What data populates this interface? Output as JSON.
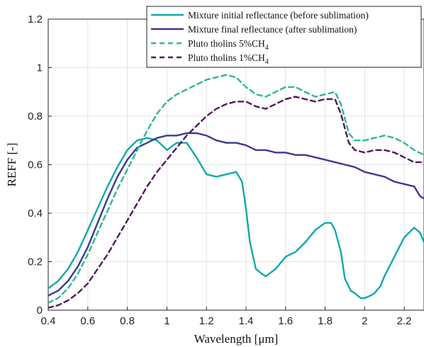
{
  "chart_data": {
    "type": "line",
    "xlabel": "Wavelength [μm]",
    "ylabel": "REFF [-]",
    "xlim": [
      0.4,
      2.3
    ],
    "ylim": [
      0,
      1.2
    ],
    "xticks": [
      0.4,
      0.6,
      0.8,
      1,
      1.2,
      1.4,
      1.6,
      1.8,
      2,
      2.2
    ],
    "xtick_labels": [
      "0.4",
      "0.6",
      "0.8",
      "1",
      "1.2",
      "1.4",
      "1.6",
      "1.8",
      "2",
      "2.2"
    ],
    "yticks": [
      0,
      0.2,
      0.4,
      0.6,
      0.8,
      1,
      1.2
    ],
    "ytick_labels": [
      "0",
      "0.2",
      "0.4",
      "0.6",
      "0.8",
      "1",
      "1.2"
    ],
    "grid": true,
    "legend_position": "top-right",
    "series": [
      {
        "name": "Mixture initial reflectance (before sublimation)",
        "color": "#13a8a8",
        "style": "solid",
        "x": [
          0.4,
          0.45,
          0.5,
          0.55,
          0.6,
          0.65,
          0.7,
          0.75,
          0.8,
          0.85,
          0.9,
          0.95,
          1.0,
          1.05,
          1.1,
          1.15,
          1.2,
          1.25,
          1.3,
          1.35,
          1.38,
          1.4,
          1.42,
          1.45,
          1.48,
          1.5,
          1.55,
          1.6,
          1.65,
          1.7,
          1.75,
          1.8,
          1.83,
          1.85,
          1.88,
          1.9,
          1.93,
          1.95,
          1.98,
          2.0,
          2.03,
          2.05,
          2.08,
          2.1,
          2.15,
          2.2,
          2.25,
          2.28,
          2.3
        ],
        "y": [
          0.09,
          0.12,
          0.17,
          0.24,
          0.33,
          0.42,
          0.51,
          0.59,
          0.66,
          0.7,
          0.71,
          0.7,
          0.66,
          0.69,
          0.69,
          0.63,
          0.56,
          0.55,
          0.56,
          0.57,
          0.53,
          0.42,
          0.28,
          0.17,
          0.15,
          0.14,
          0.17,
          0.22,
          0.24,
          0.28,
          0.33,
          0.36,
          0.36,
          0.33,
          0.24,
          0.13,
          0.08,
          0.07,
          0.05,
          0.05,
          0.06,
          0.07,
          0.1,
          0.14,
          0.22,
          0.3,
          0.34,
          0.32,
          0.28
        ]
      },
      {
        "name": "Mixture final reflectance (after sublimation)",
        "color": "#3a3a94",
        "style": "solid",
        "x": [
          0.4,
          0.45,
          0.5,
          0.55,
          0.6,
          0.65,
          0.7,
          0.75,
          0.8,
          0.85,
          0.9,
          0.95,
          1.0,
          1.05,
          1.1,
          1.15,
          1.2,
          1.25,
          1.3,
          1.35,
          1.4,
          1.45,
          1.5,
          1.55,
          1.6,
          1.65,
          1.7,
          1.75,
          1.8,
          1.85,
          1.9,
          1.95,
          2.0,
          2.05,
          2.1,
          2.15,
          2.2,
          2.25,
          2.28,
          2.3
        ],
        "y": [
          0.06,
          0.08,
          0.12,
          0.18,
          0.26,
          0.36,
          0.46,
          0.55,
          0.62,
          0.67,
          0.69,
          0.71,
          0.72,
          0.72,
          0.73,
          0.73,
          0.72,
          0.7,
          0.69,
          0.69,
          0.68,
          0.66,
          0.66,
          0.65,
          0.65,
          0.64,
          0.64,
          0.63,
          0.62,
          0.61,
          0.6,
          0.59,
          0.57,
          0.56,
          0.55,
          0.53,
          0.52,
          0.51,
          0.47,
          0.46
        ]
      },
      {
        "name": "Pluto tholins 5%CH",
        "color": "#30b88c",
        "style": "dashed",
        "x": [
          0.4,
          0.45,
          0.5,
          0.55,
          0.6,
          0.65,
          0.7,
          0.75,
          0.8,
          0.85,
          0.9,
          0.95,
          1.0,
          1.05,
          1.1,
          1.15,
          1.2,
          1.25,
          1.3,
          1.35,
          1.4,
          1.45,
          1.5,
          1.55,
          1.6,
          1.65,
          1.7,
          1.75,
          1.8,
          1.85,
          1.88,
          1.92,
          1.95,
          2.0,
          2.05,
          2.1,
          2.15,
          2.2,
          2.25,
          2.3
        ],
        "y": [
          0.03,
          0.05,
          0.09,
          0.15,
          0.23,
          0.32,
          0.41,
          0.5,
          0.58,
          0.66,
          0.74,
          0.81,
          0.86,
          0.89,
          0.91,
          0.93,
          0.95,
          0.96,
          0.97,
          0.96,
          0.92,
          0.89,
          0.88,
          0.9,
          0.92,
          0.92,
          0.9,
          0.88,
          0.89,
          0.9,
          0.85,
          0.73,
          0.7,
          0.7,
          0.71,
          0.72,
          0.71,
          0.69,
          0.66,
          0.64
        ]
      },
      {
        "name": "Pluto tholins 1%CH",
        "color": "#4e1a5a",
        "style": "dashed",
        "x": [
          0.4,
          0.45,
          0.5,
          0.55,
          0.6,
          0.65,
          0.7,
          0.75,
          0.8,
          0.85,
          0.9,
          0.95,
          1.0,
          1.05,
          1.1,
          1.15,
          1.2,
          1.25,
          1.3,
          1.35,
          1.4,
          1.45,
          1.5,
          1.55,
          1.6,
          1.65,
          1.7,
          1.75,
          1.8,
          1.85,
          1.88,
          1.92,
          1.95,
          2.0,
          2.05,
          2.1,
          2.15,
          2.2,
          2.25,
          2.3
        ],
        "y": [
          0.01,
          0.02,
          0.04,
          0.07,
          0.11,
          0.17,
          0.23,
          0.3,
          0.37,
          0.44,
          0.51,
          0.57,
          0.62,
          0.67,
          0.72,
          0.76,
          0.8,
          0.83,
          0.85,
          0.86,
          0.86,
          0.84,
          0.83,
          0.85,
          0.87,
          0.88,
          0.87,
          0.86,
          0.87,
          0.87,
          0.81,
          0.69,
          0.66,
          0.65,
          0.66,
          0.66,
          0.65,
          0.63,
          0.61,
          0.61
        ]
      }
    ],
    "legend": {
      "labels": [
        {
          "main": "Mixture initial reflectance (before sublimation)",
          "sub": ""
        },
        {
          "main": "Mixture final reflectance (after sublimation)",
          "sub": ""
        },
        {
          "main": "Pluto tholins 5%CH",
          "sub": "4"
        },
        {
          "main": "Pluto tholins 1%CH",
          "sub": "4"
        }
      ]
    }
  }
}
